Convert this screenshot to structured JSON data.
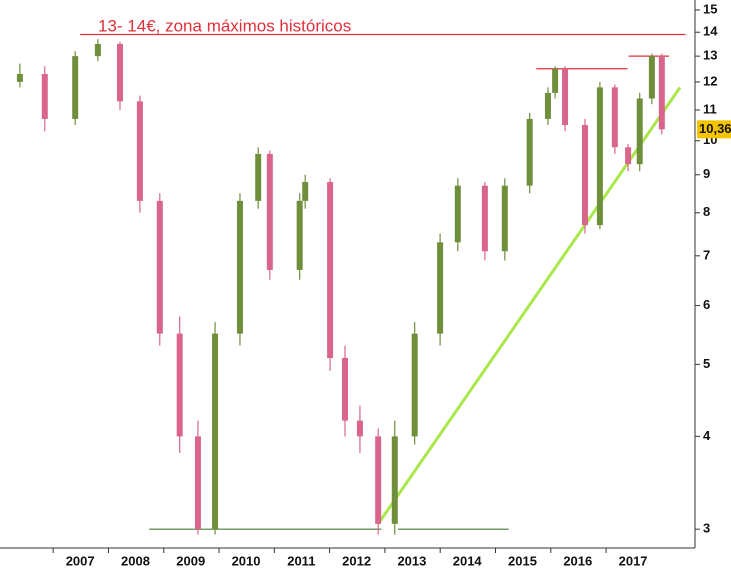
{
  "chart_data": {
    "type": "candlestick",
    "annotation": "13- 14€, zona máximos históricos",
    "last_price_label": "10,36",
    "x": [
      2005.91,
      2006.36,
      2006.91,
      2007.32,
      2007.72,
      2008.08,
      2008.44,
      2008.8,
      2009.13,
      2009.44,
      2009.89,
      2010.22,
      2010.43,
      2010.97,
      2011.07,
      2011.52,
      2011.79,
      2012.06,
      2012.39,
      2012.69,
      2013.05,
      2013.51,
      2013.83,
      2014.32,
      2014.68,
      2015.13,
      2015.46,
      2015.59,
      2015.77,
      2016.13,
      2016.4,
      2016.67,
      2016.91,
      2017.12,
      2017.34,
      2017.52
    ],
    "open": [
      12.0,
      12.3,
      10.7,
      13.0,
      13.5,
      11.3,
      8.3,
      5.5,
      4.0,
      3.0,
      5.5,
      8.3,
      9.6,
      6.7,
      8.3,
      8.8,
      5.1,
      4.2,
      4.0,
      3.05,
      4.0,
      5.5,
      7.3,
      8.7,
      7.1,
      8.7,
      10.7,
      11.6,
      12.5,
      10.5,
      7.7,
      11.8,
      9.8,
      9.3,
      11.4,
      13.0
    ],
    "high": [
      12.7,
      12.6,
      13.2,
      13.7,
      13.6,
      11.5,
      8.5,
      5.8,
      4.2,
      5.7,
      8.5,
      9.8,
      9.7,
      8.5,
      9.0,
      8.9,
      5.3,
      4.4,
      4.1,
      4.2,
      5.7,
      7.5,
      8.9,
      8.8,
      8.9,
      10.9,
      11.8,
      12.6,
      12.6,
      10.7,
      12.0,
      11.9,
      9.9,
      11.6,
      13.1,
      13.1
    ],
    "low": [
      11.8,
      10.3,
      10.5,
      12.8,
      11.0,
      8.0,
      5.3,
      3.8,
      2.95,
      2.95,
      5.3,
      8.1,
      6.5,
      6.5,
      8.1,
      4.9,
      4.0,
      3.8,
      2.95,
      2.95,
      3.9,
      5.3,
      7.1,
      6.9,
      6.9,
      8.5,
      10.5,
      11.4,
      10.3,
      7.5,
      7.6,
      9.6,
      9.1,
      9.1,
      11.2,
      10.2
    ],
    "close": [
      12.3,
      10.7,
      13.0,
      13.5,
      11.3,
      8.3,
      5.5,
      4.0,
      3.0,
      5.5,
      8.3,
      9.6,
      6.7,
      8.3,
      8.8,
      5.1,
      4.2,
      4.0,
      3.05,
      4.0,
      5.5,
      7.3,
      8.7,
      7.1,
      8.7,
      10.7,
      11.6,
      12.5,
      10.5,
      7.7,
      11.8,
      9.8,
      9.3,
      11.4,
      13.0,
      10.36
    ],
    "up_color": "#6f8f3c",
    "down_color": "#d9668a",
    "log_scale": true,
    "xlim": [
      2005.55,
      2018.12
    ],
    "xticks": [
      2007,
      2008,
      2009,
      2010,
      2011,
      2012,
      2013,
      2014,
      2015,
      2016,
      2017
    ],
    "ylim": [
      2.83,
      15.47
    ],
    "yticks": [
      3,
      4,
      5,
      6,
      7,
      8,
      9,
      10,
      11,
      12,
      13,
      14,
      15
    ],
    "lines": [
      {
        "x": [
          2007.0,
          2017.95
        ],
        "y": [
          13.9,
          13.9
        ],
        "color": "#e0303a"
      },
      {
        "x": [
          2015.25,
          2016.9
        ],
        "y": [
          12.5,
          12.5
        ],
        "color": "#e0303a"
      },
      {
        "x": [
          2016.92,
          2017.65
        ],
        "y": [
          13.0,
          13.0
        ],
        "color": "#e0303a"
      },
      {
        "x": [
          2012.39,
          2017.85
        ],
        "y": [
          3.05,
          11.8
        ],
        "color": "#a8e84a"
      },
      {
        "x": [
          2008.25,
          2012.45
        ],
        "y": [
          3.0,
          3.0
        ],
        "color": "#4a7a3a"
      },
      {
        "x": [
          2012.75,
          2014.75
        ],
        "y": [
          3.0,
          3.0
        ],
        "color": "#4a7a3a"
      }
    ]
  }
}
